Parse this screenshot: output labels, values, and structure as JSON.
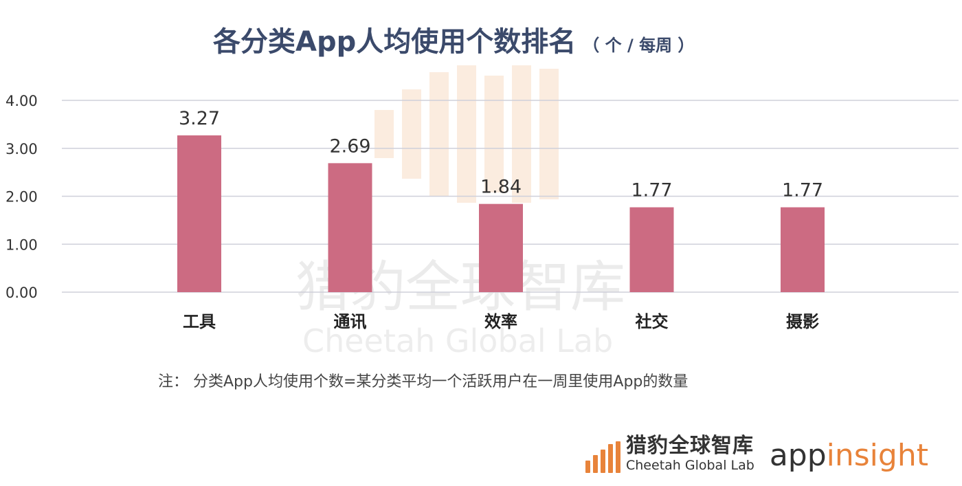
{
  "title": "各分类App人均使用个数排名",
  "title_unit": "（ 个 / 每周 ）",
  "chart_data": {
    "type": "bar",
    "categories": [
      "工具",
      "通讯",
      "效率",
      "社交",
      "摄影"
    ],
    "values": [
      3.27,
      2.69,
      1.84,
      1.77,
      1.77
    ],
    "data_labels": [
      "3.27",
      "2.69",
      "1.84",
      "1.77",
      "1.77"
    ],
    "y_ticks": [
      "0.00",
      "1.00",
      "2.00",
      "3.00",
      "4.00"
    ],
    "ylim": [
      0,
      4
    ],
    "grid": true,
    "bar_color": "#cc6b82"
  },
  "note": "注： 分类App人均使用个数=某分类平均一个活跃用户在一周里使用App的数量",
  "watermark": {
    "cn": "猎豹全球智库",
    "en": "Cheetah Global Lab",
    "color": "#f3c9a4"
  },
  "brand": {
    "cn": "猎豹全球智库",
    "en": "Cheetah Global Lab",
    "logo2_a": "app",
    "logo2_b": "insight",
    "accent": "#e8833a"
  }
}
